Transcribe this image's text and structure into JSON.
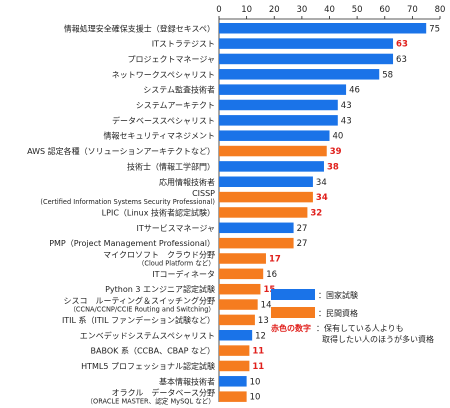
{
  "colors": {
    "national": "#1a73e8",
    "private": "#f57c1f",
    "highlight": "#e0201c",
    "axis": "#222222"
  },
  "chart_data": {
    "type": "bar",
    "orientation": "horizontal",
    "xlim": [
      0,
      80
    ],
    "xticks": [
      0,
      10,
      20,
      30,
      40,
      50,
      60,
      70,
      80
    ],
    "grid": false,
    "legend_position": "bottom-right",
    "legend": {
      "national": "：国家試験",
      "private": "：民間資格",
      "highlight_key": "赤色の数字",
      "highlight_text_1": "：保有している人よりも",
      "highlight_text_2": "取得したい人のほうが多い資格"
    },
    "bars": [
      {
        "label": [
          "情報処理安全確保支援士（登録セキスペ）"
        ],
        "value": 75,
        "type": "national",
        "highlight": false
      },
      {
        "label": [
          "ITストラテジスト"
        ],
        "value": 63,
        "type": "national",
        "highlight": true
      },
      {
        "label": [
          "プロジェクトマネージャ"
        ],
        "value": 63,
        "type": "national",
        "highlight": false
      },
      {
        "label": [
          "ネットワークスペシャリスト"
        ],
        "value": 58,
        "type": "national",
        "highlight": false
      },
      {
        "label": [
          "システム監査技術者"
        ],
        "value": 46,
        "type": "national",
        "highlight": false
      },
      {
        "label": [
          "システムアーキテクト"
        ],
        "value": 43,
        "type": "national",
        "highlight": false
      },
      {
        "label": [
          "データベーススペシャリスト"
        ],
        "value": 43,
        "type": "national",
        "highlight": false
      },
      {
        "label": [
          "情報セキュリティマネジメント"
        ],
        "value": 40,
        "type": "national",
        "highlight": false
      },
      {
        "label": [
          "AWS 認定各種（ソリューションアーキテクトなど）"
        ],
        "value": 39,
        "type": "private",
        "highlight": true
      },
      {
        "label": [
          "技術士（情報工学部門）"
        ],
        "value": 38,
        "type": "national",
        "highlight": true
      },
      {
        "label": [
          "応用情報技術者"
        ],
        "value": 34,
        "type": "national",
        "highlight": false
      },
      {
        "label": [
          "CISSP",
          "(Certified Information Systems Security Professional)"
        ],
        "value": 34,
        "type": "private",
        "highlight": true
      },
      {
        "label": [
          "LPIC（Linux 技術者認定試験）"
        ],
        "value": 32,
        "type": "private",
        "highlight": true
      },
      {
        "label": [
          "ITサービスマネージャ"
        ],
        "value": 27,
        "type": "national",
        "highlight": false
      },
      {
        "label": [
          "PMP（Project Management Professional）"
        ],
        "value": 27,
        "type": "private",
        "highlight": false
      },
      {
        "label": [
          "マイクロソフト　クラウド分野",
          "（Cloud Platform など）"
        ],
        "value": 17,
        "type": "private",
        "highlight": true
      },
      {
        "label": [
          "ITコーディネータ"
        ],
        "value": 16,
        "type": "private",
        "highlight": false
      },
      {
        "label": [
          "Python 3 エンジニア認定試験"
        ],
        "value": 15,
        "type": "private",
        "highlight": true
      },
      {
        "label": [
          "シスコ　ルーティング＆スイッチング分野",
          "（CCNA/CCNP/CCIE Routing and Switching）"
        ],
        "value": 14,
        "type": "private",
        "highlight": false
      },
      {
        "label": [
          "ITIL 系（ITIL ファンデーション試験など）"
        ],
        "value": 13,
        "type": "private",
        "highlight": false
      },
      {
        "label": [
          "エンベデッドシステムスペシャリスト"
        ],
        "value": 12,
        "type": "national",
        "highlight": false
      },
      {
        "label": [
          "BABOK 系（CCBA、CBAP など）"
        ],
        "value": 11,
        "type": "private",
        "highlight": true
      },
      {
        "label": [
          "HTML5 プロフェッショナル認定試験"
        ],
        "value": 11,
        "type": "private",
        "highlight": true
      },
      {
        "label": [
          "基本情報技術者"
        ],
        "value": 10,
        "type": "national",
        "highlight": false
      },
      {
        "label": [
          "オラクル　データベース分野",
          "（ORACLE MASTER、認定 MySQL など）"
        ],
        "value": 10,
        "type": "private",
        "highlight": false
      }
    ]
  }
}
